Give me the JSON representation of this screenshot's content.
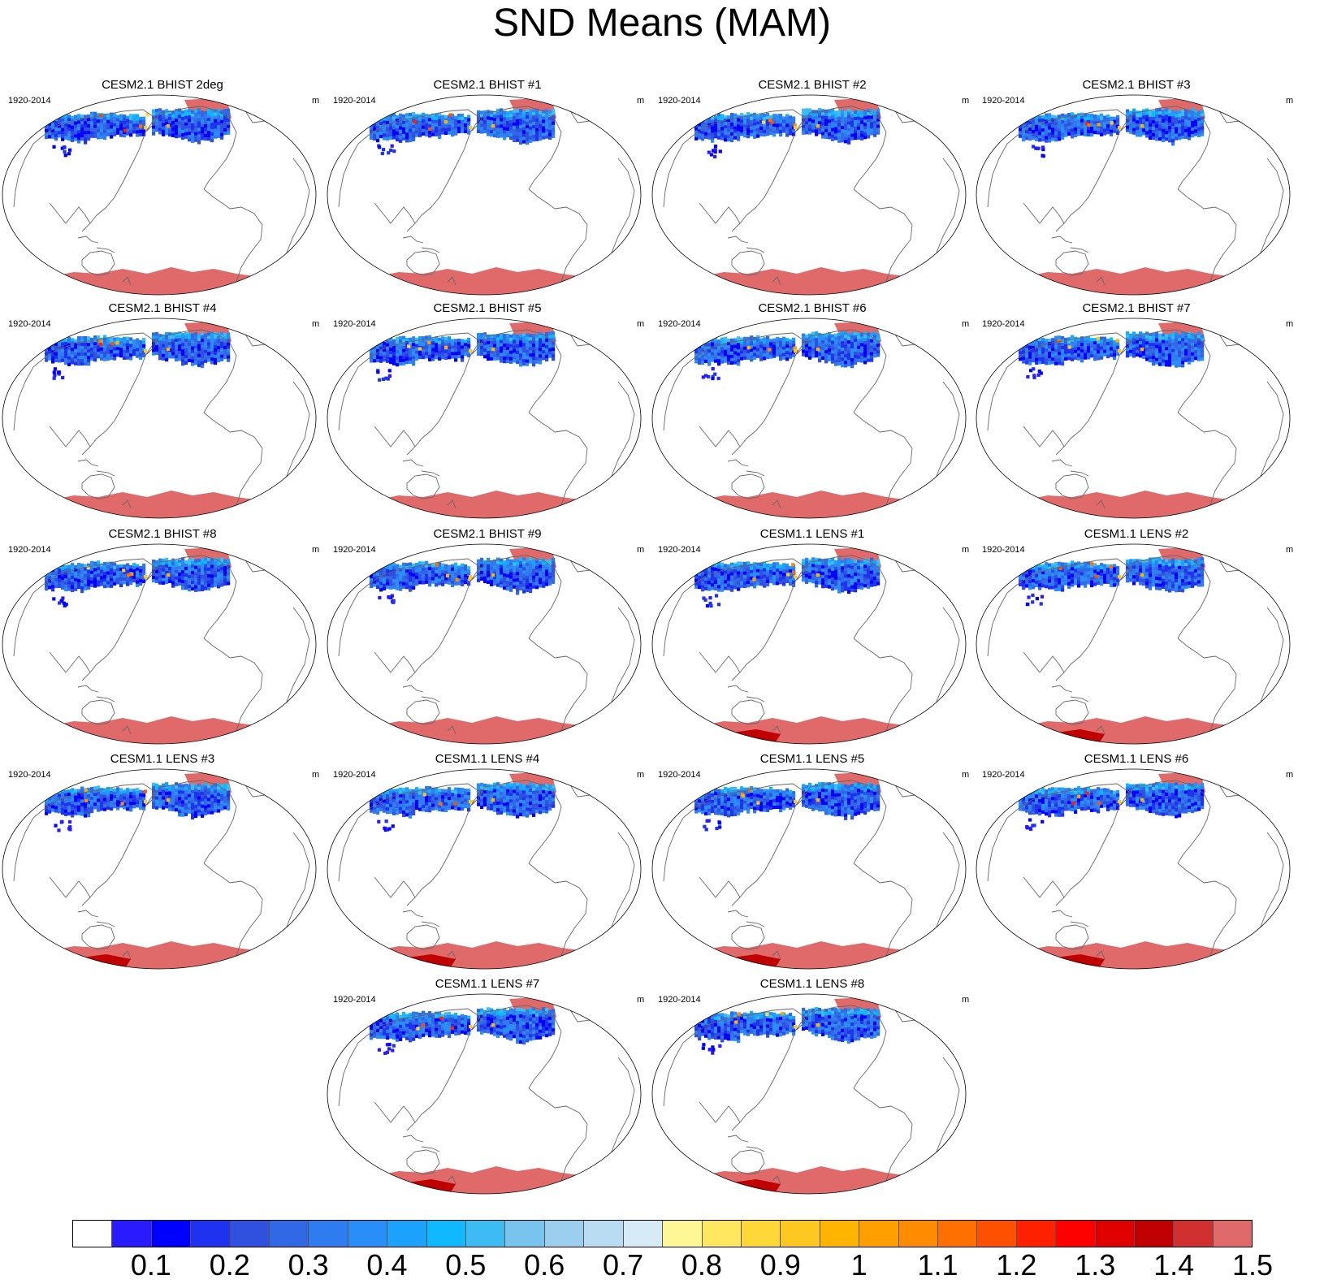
{
  "title": "SND Means (MAM)",
  "period_label": "1920-2014",
  "units_label": "m",
  "panels": [
    {
      "title": "CESM2.1 BHIST 2deg",
      "model": "cesm2"
    },
    {
      "title": "CESM2.1 BHIST #1",
      "model": "cesm2"
    },
    {
      "title": "CESM2.1 BHIST #2",
      "model": "cesm2"
    },
    {
      "title": "CESM2.1 BHIST #3",
      "model": "cesm2"
    },
    {
      "title": "CESM2.1 BHIST #4",
      "model": "cesm2"
    },
    {
      "title": "CESM2.1 BHIST #5",
      "model": "cesm2"
    },
    {
      "title": "CESM2.1 BHIST #6",
      "model": "cesm2"
    },
    {
      "title": "CESM2.1 BHIST #7",
      "model": "cesm2"
    },
    {
      "title": "CESM2.1 BHIST #8",
      "model": "cesm2"
    },
    {
      "title": "CESM2.1 BHIST #9",
      "model": "cesm2"
    },
    {
      "title": "CESM1.1 LENS #1",
      "model": "cesm1"
    },
    {
      "title": "CESM1.1 LENS #2",
      "model": "cesm1"
    },
    {
      "title": "CESM1.1 LENS #3",
      "model": "cesm1"
    },
    {
      "title": "CESM1.1 LENS #4",
      "model": "cesm1"
    },
    {
      "title": "CESM1.1 LENS #5",
      "model": "cesm1"
    },
    {
      "title": "CESM1.1 LENS #6",
      "model": "cesm1"
    },
    {
      "title": "CESM1.1 LENS #7",
      "model": "cesm1"
    },
    {
      "title": "CESM1.1 LENS #8",
      "model": "cesm1"
    }
  ],
  "colorbar": {
    "colors": [
      "#ffffff",
      "#2a1aff",
      "#0000ff",
      "#1e32f0",
      "#3050e0",
      "#3068e6",
      "#2f7cf0",
      "#2a8ef8",
      "#1aa2fc",
      "#10b8ff",
      "#3cbcf2",
      "#78c4ee",
      "#9ccfee",
      "#b8dcf2",
      "#d6eaf8",
      "#fff696",
      "#ffe860",
      "#ffd838",
      "#ffc820",
      "#ffb400",
      "#ffa000",
      "#ff8c00",
      "#ff7000",
      "#ff5000",
      "#ff2000",
      "#ff0000",
      "#e00000",
      "#c00000",
      "#d03030",
      "#e06a6a"
    ],
    "labels": [
      "0.1",
      "0.2",
      "0.3",
      "0.4",
      "0.5",
      "0.6",
      "0.7",
      "0.8",
      "0.9",
      "1",
      "1.1",
      "1.2",
      "1.3",
      "1.4",
      "1.5"
    ]
  }
}
